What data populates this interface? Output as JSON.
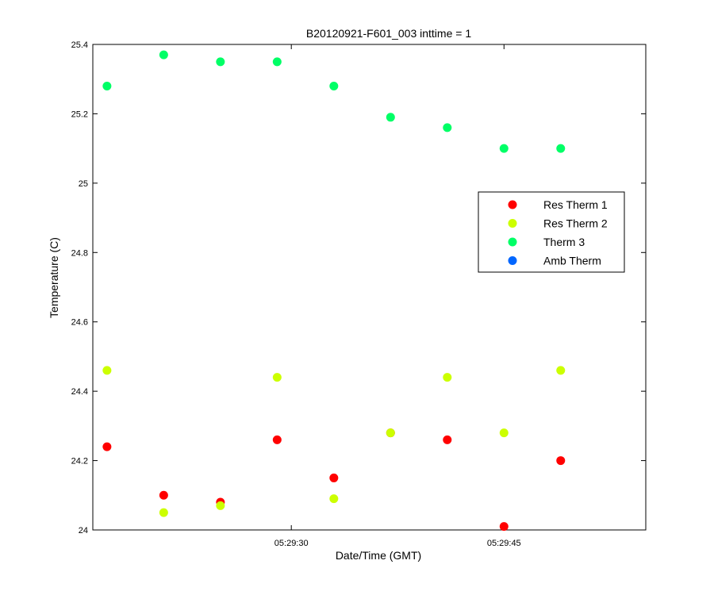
{
  "chart_data": {
    "type": "scatter",
    "title": "B20120921-F601_003 inttime = 1",
    "xlabel": "Date/Time (GMT)",
    "ylabel": "Temperature (C)",
    "x_unit": "time",
    "xlim": [
      "05:29:16",
      "05:29:55"
    ],
    "ylim": [
      24,
      25.4
    ],
    "x_ticks": [
      "05:29:30",
      "05:29:45"
    ],
    "y_ticks": [
      24,
      24.2,
      24.4,
      24.6,
      24.8,
      25,
      25.2,
      25.4
    ],
    "y_tick_labels": [
      "24",
      "24.2",
      "24.4",
      "24.6",
      "24.8",
      "25",
      "25.2",
      "25.4"
    ],
    "grid": false,
    "legend_position": "right",
    "x": [
      "05:29:17",
      "05:29:21",
      "05:29:25",
      "05:29:29",
      "05:29:33",
      "05:29:37",
      "05:29:41",
      "05:29:45",
      "05:29:49"
    ],
    "series": [
      {
        "name": "Res Therm 1",
        "color": "#ff0000",
        "values": [
          24.24,
          24.1,
          24.08,
          24.26,
          24.15,
          24.28,
          24.26,
          24.01,
          24.2
        ]
      },
      {
        "name": "Res Therm 2",
        "color": "#ccff00",
        "values": [
          24.46,
          24.05,
          24.07,
          24.44,
          24.09,
          24.28,
          24.44,
          24.28,
          24.46
        ]
      },
      {
        "name": "Therm 3",
        "color": "#00ff66",
        "values": [
          25.28,
          25.37,
          25.35,
          25.35,
          25.28,
          25.19,
          25.16,
          25.1,
          25.1
        ]
      },
      {
        "name": "Amb Therm",
        "color": "#0066ff",
        "values": []
      }
    ]
  }
}
